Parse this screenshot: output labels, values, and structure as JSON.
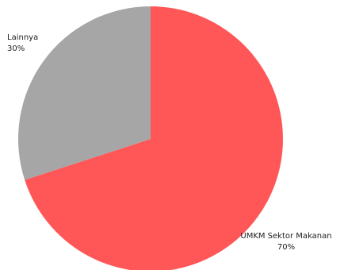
{
  "chart_data": {
    "type": "pie",
    "title": "",
    "start_angle_deg": 0,
    "direction": "clockwise",
    "slices": [
      {
        "label": "UMKM Sektor Makanan",
        "value": 70,
        "value_label": "70%",
        "color": "#ff5757"
      },
      {
        "label": "Lainnya",
        "value": 30,
        "value_label": "30%",
        "color": "#a6a6a6"
      }
    ]
  }
}
